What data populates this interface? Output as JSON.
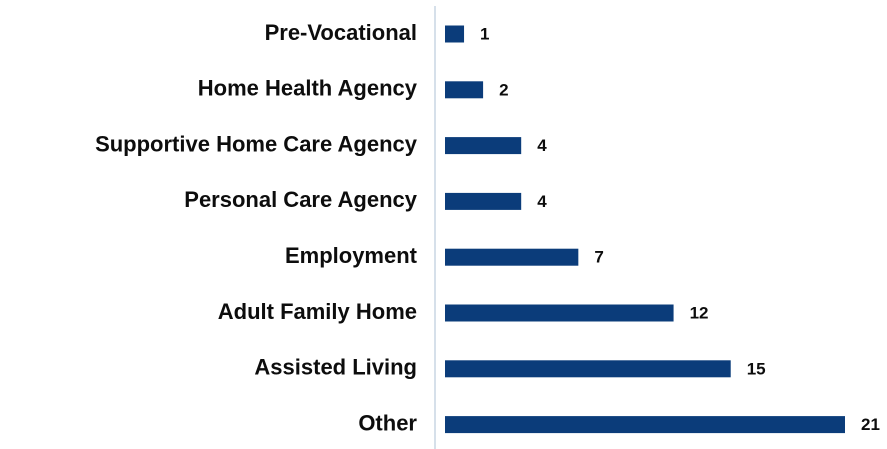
{
  "chart_data": {
    "type": "hbar",
    "categories": [
      "Pre-Vocational",
      "Home Health Agency",
      "Supportive Home Care Agency",
      "Personal Care Agency",
      "Employment",
      "Adult Family Home",
      "Assisted Living",
      "Other"
    ],
    "values": [
      1,
      2,
      4,
      4,
      7,
      12,
      15,
      21
    ],
    "color": "#0b3c7a"
  }
}
